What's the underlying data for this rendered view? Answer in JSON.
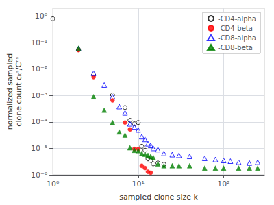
{
  "chart_data": {
    "type": "scatter",
    "xlabel": "sampled clone size k",
    "ylabel": "normalized sampled\nclone count cₖˢ/Cⁿˢ",
    "log": true,
    "xlim": [
      1,
      300
    ],
    "ylim": [
      1e-06,
      2
    ],
    "xticks": [
      {
        "value": 1,
        "label": "10⁰"
      },
      {
        "value": 10,
        "label": "10¹"
      },
      {
        "value": 100,
        "label": "10²"
      }
    ],
    "yticks": [
      {
        "value": 1e-06,
        "label": "10⁻⁶"
      },
      {
        "value": 1e-05,
        "label": "10⁻⁵"
      },
      {
        "value": 0.0001,
        "label": "10⁻⁴"
      },
      {
        "value": 0.001,
        "label": "10⁻³"
      },
      {
        "value": 0.01,
        "label": "10⁻²"
      },
      {
        "value": 0.1,
        "label": "10⁻¹"
      },
      {
        "value": 1,
        "label": "10⁰"
      }
    ],
    "grid": true,
    "legend": "upper right",
    "series": [
      {
        "name": "-CD4-alpha",
        "color": "black",
        "marker": "circle_open",
        "x": [
          1,
          2,
          3,
          5,
          7,
          8,
          9,
          10,
          11,
          12,
          13,
          14,
          15,
          17,
          20
        ],
        "values": [
          0.8,
          0.055,
          0.006,
          0.00105,
          0.00035,
          0.000115,
          8.5e-05,
          9.5e-05,
          1.2e-05,
          8.5e-06,
          4e-06,
          3.5e-06,
          2.6e-06,
          2.8e-06,
          2.5e-06
        ]
      },
      {
        "name": "-CD4-beta",
        "color": "red",
        "marker": "circle",
        "x": [
          2,
          3,
          5,
          7,
          8,
          9,
          10,
          11,
          12,
          13,
          14
        ],
        "values": [
          0.052,
          0.005,
          0.00065,
          9.5e-05,
          5.2e-05,
          9.5e-06,
          9.5e-06,
          2.2e-06,
          1.8e-06,
          1.3e-06,
          1.2e-06
        ]
      },
      {
        "name": "-CD8-alpha",
        "color": "blue",
        "marker": "triangle_open",
        "x": [
          2,
          3,
          4,
          5,
          6,
          7,
          8,
          9,
          10,
          11,
          12,
          13,
          14,
          15,
          17,
          20,
          25,
          30,
          40,
          60,
          80,
          100,
          120,
          150,
          200,
          250
        ],
        "values": [
          0.06,
          0.007,
          0.0025,
          0.0009,
          0.00038,
          0.00022,
          8.5e-05,
          6.5e-05,
          5e-05,
          2.8e-05,
          2.2e-05,
          1.5e-05,
          1.3e-05,
          1e-05,
          9e-06,
          6.5e-06,
          5.8e-06,
          5.5e-06,
          5e-06,
          4.2e-06,
          3.8e-06,
          3.5e-06,
          3.3e-06,
          3e-06,
          2.8e-06,
          3e-06
        ]
      },
      {
        "name": "-CD8-beta",
        "color": "green",
        "marker": "triangle",
        "x": [
          2,
          3,
          4,
          5,
          6,
          7,
          8,
          9,
          10,
          11,
          12,
          13,
          14,
          15,
          17,
          20,
          25,
          30,
          40,
          60,
          80,
          100,
          150,
          200,
          250
        ],
        "values": [
          0.062,
          0.0009,
          0.00028,
          9.5e-05,
          4.2e-05,
          3.2e-05,
          1.05e-05,
          8.5e-06,
          8.2e-06,
          6.5e-06,
          6e-06,
          5.5e-06,
          5e-06,
          4.5e-06,
          2.6e-06,
          2.2e-06,
          2.2e-06,
          2.2e-06,
          2.2e-06,
          1.8e-06,
          1.8e-06,
          1.8e-06,
          1.8e-06,
          1.8e-06,
          1.8e-06
        ]
      }
    ]
  }
}
